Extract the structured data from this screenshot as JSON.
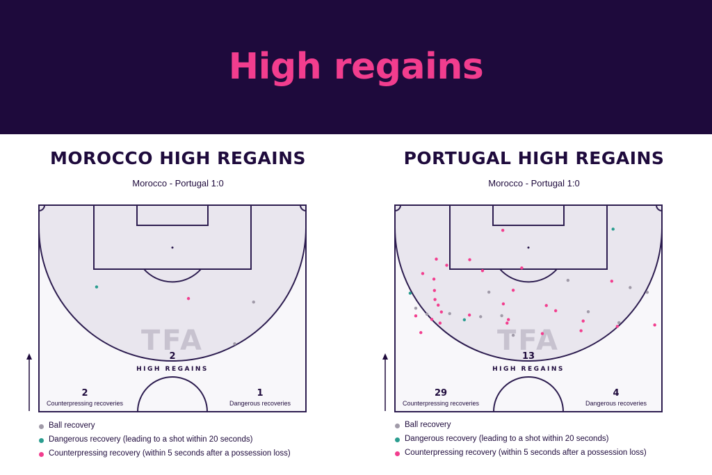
{
  "banner": {
    "title": "High regains",
    "bg_color": "#1e0a3c",
    "title_color": "#f23d8e"
  },
  "colors": {
    "ball_recovery": "#a09aa8",
    "dangerous_recovery": "#2a9d8f",
    "counterpressing_recovery": "#f23d8e",
    "pitch_line": "#2c1c4f",
    "pitch_fill": "#e9e6ee",
    "ink": "#1e0a3c"
  },
  "legend": [
    {
      "key": "ball_recovery",
      "label": "Ball recovery"
    },
    {
      "key": "dangerous_recovery",
      "label": "Dangerous recovery (leading to a shot within 20 seconds)"
    },
    {
      "key": "counterpressing_recovery",
      "label": "Counterpressing recovery (within 5 seconds after a possession loss)"
    }
  ],
  "watermark": "TFA",
  "chart_data": [
    {
      "type": "scatter",
      "title": "MOROCCO HIGH REGAINS",
      "subtitle": "Morocco - Portugal 1:0",
      "high_regains_value": "2",
      "high_regains_label": "HIGH REGAINS",
      "counterpressing_value": "2",
      "counterpressing_label": "Counterpressing recoveries",
      "dangerous_value": "1",
      "dangerous_label": "Dangerous recoveries",
      "points": [
        {
          "x": 56,
          "y": 45.2,
          "kind": "counterpressing_recovery"
        },
        {
          "x": 21.6,
          "y": 39.6,
          "kind": "dangerous_recovery"
        },
        {
          "x": 80.4,
          "y": 46.9,
          "kind": "ball_recovery"
        },
        {
          "x": 73.3,
          "y": 67.1,
          "kind": "ball_recovery"
        }
      ]
    },
    {
      "type": "scatter",
      "title": "PORTUGAL HIGH REGAINS",
      "subtitle": "Morocco - Portugal 1:0",
      "high_regains_value": "13",
      "high_regains_label": "HIGH REGAINS",
      "counterpressing_value": "29",
      "counterpressing_label": "Counterpressing recoveries",
      "dangerous_value": "4",
      "dangerous_label": "Dangerous recoveries",
      "points": [
        {
          "x": 40.4,
          "y": 12.2,
          "kind": "counterpressing_recovery"
        },
        {
          "x": 81.7,
          "y": 11.6,
          "kind": "dangerous_recovery"
        },
        {
          "x": 15.5,
          "y": 26.1,
          "kind": "counterpressing_recovery"
        },
        {
          "x": 19.4,
          "y": 29.1,
          "kind": "counterpressing_recovery"
        },
        {
          "x": 28.0,
          "y": 26.4,
          "kind": "counterpressing_recovery"
        },
        {
          "x": 32.8,
          "y": 31.7,
          "kind": "counterpressing_recovery"
        },
        {
          "x": 47.5,
          "y": 30.4,
          "kind": "counterpressing_recovery"
        },
        {
          "x": 10.4,
          "y": 33.1,
          "kind": "counterpressing_recovery"
        },
        {
          "x": 14.6,
          "y": 35.8,
          "kind": "counterpressing_recovery"
        },
        {
          "x": 64.8,
          "y": 36.4,
          "kind": "ball_recovery"
        },
        {
          "x": 81.2,
          "y": 36.8,
          "kind": "counterpressing_recovery"
        },
        {
          "x": 88.1,
          "y": 39.9,
          "kind": "ball_recovery"
        },
        {
          "x": 14.8,
          "y": 41.3,
          "kind": "counterpressing_recovery"
        },
        {
          "x": 35.2,
          "y": 42.1,
          "kind": "ball_recovery"
        },
        {
          "x": 44.3,
          "y": 41.2,
          "kind": "counterpressing_recovery"
        },
        {
          "x": 94.5,
          "y": 42.2,
          "kind": "ball_recovery"
        },
        {
          "x": 5.7,
          "y": 42.6,
          "kind": "dangerous_recovery"
        },
        {
          "x": 15.0,
          "y": 45.7,
          "kind": "counterpressing_recovery"
        },
        {
          "x": 40.6,
          "y": 47.8,
          "kind": "counterpressing_recovery"
        },
        {
          "x": 16.2,
          "y": 48.4,
          "kind": "counterpressing_recovery"
        },
        {
          "x": 56.7,
          "y": 48.6,
          "kind": "counterpressing_recovery"
        },
        {
          "x": 7.8,
          "y": 49.9,
          "kind": "ball_recovery"
        },
        {
          "x": 60.2,
          "y": 51.1,
          "kind": "counterpressing_recovery"
        },
        {
          "x": 17.4,
          "y": 51.7,
          "kind": "counterpressing_recovery"
        },
        {
          "x": 72.4,
          "y": 51.6,
          "kind": "ball_recovery"
        },
        {
          "x": 20.5,
          "y": 52.5,
          "kind": "ball_recovery"
        },
        {
          "x": 7.8,
          "y": 53.6,
          "kind": "counterpressing_recovery"
        },
        {
          "x": 27.9,
          "y": 53.2,
          "kind": "counterpressing_recovery"
        },
        {
          "x": 12.0,
          "y": 52.8,
          "kind": "ball_recovery"
        },
        {
          "x": 32.1,
          "y": 54.0,
          "kind": "ball_recovery"
        },
        {
          "x": 40.0,
          "y": 53.5,
          "kind": "ball_recovery"
        },
        {
          "x": 13.8,
          "y": 55.3,
          "kind": "counterpressing_recovery"
        },
        {
          "x": 26.0,
          "y": 55.5,
          "kind": "dangerous_recovery"
        },
        {
          "x": 42.5,
          "y": 55.4,
          "kind": "counterpressing_recovery"
        },
        {
          "x": 16.9,
          "y": 57.1,
          "kind": "counterpressing_recovery"
        },
        {
          "x": 70.5,
          "y": 56.1,
          "kind": "counterpressing_recovery"
        },
        {
          "x": 83.9,
          "y": 56.9,
          "kind": "ball_recovery"
        },
        {
          "x": 42.0,
          "y": 57.1,
          "kind": "counterpressing_recovery"
        },
        {
          "x": 83.3,
          "y": 58.7,
          "kind": "counterpressing_recovery"
        },
        {
          "x": 97.3,
          "y": 58.0,
          "kind": "counterpressing_recovery"
        },
        {
          "x": 9.7,
          "y": 61.7,
          "kind": "counterpressing_recovery"
        },
        {
          "x": 55.2,
          "y": 62.2,
          "kind": "counterpressing_recovery"
        },
        {
          "x": 69.7,
          "y": 60.8,
          "kind": "counterpressing_recovery"
        },
        {
          "x": 44.3,
          "y": 63.0,
          "kind": "ball_recovery"
        }
      ]
    }
  ]
}
